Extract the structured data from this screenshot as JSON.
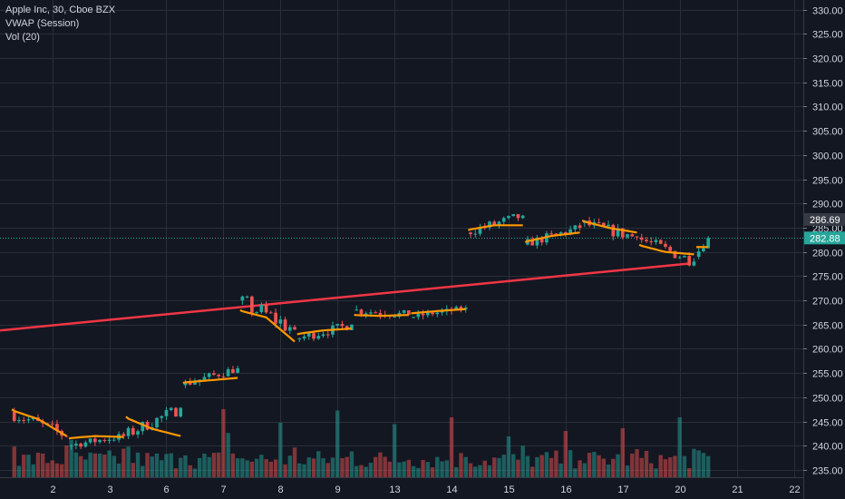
{
  "chart_data": {
    "type": "candlestick",
    "legend": [
      "Apple Inc, 30, Cboe BZX",
      "VWAP (Session)",
      "Vol (20)"
    ],
    "y_ticks": [
      235,
      240,
      245,
      250,
      255,
      260,
      265,
      270,
      275,
      280,
      285,
      290,
      295,
      300,
      305,
      310,
      315,
      320,
      325,
      330
    ],
    "y_tick_labels": [
      "235.00",
      "240.00",
      "245.00",
      "250.00",
      "255.00",
      "260.00",
      "265.00",
      "270.00",
      "275.00",
      "280.00",
      "285.00",
      "290.00",
      "295.00",
      "300.00",
      "305.00",
      "310.00",
      "315.00",
      "320.00",
      "325.00",
      "330.00"
    ],
    "ylim": [
      233.5,
      332
    ],
    "x_ticks": [
      {
        "label": "2",
        "bar": 8
      },
      {
        "label": "3",
        "bar": 20
      },
      {
        "label": "6",
        "bar": 32
      },
      {
        "label": "7",
        "bar": 44
      },
      {
        "label": "8",
        "bar": 56
      },
      {
        "label": "9",
        "bar": 68
      },
      {
        "label": "13",
        "bar": 80
      },
      {
        "label": "14",
        "bar": 92
      },
      {
        "label": "15",
        "bar": 104
      },
      {
        "label": "16",
        "bar": 116
      },
      {
        "label": "17",
        "bar": 128
      },
      {
        "label": "20",
        "bar": 140
      },
      {
        "label": "21",
        "bar": 152
      },
      {
        "label": "22",
        "bar": 164
      }
    ],
    "x_range_bars": [
      -3,
      166
    ],
    "price_labels": [
      {
        "value": 286.69,
        "label": "286.69",
        "color": "#363a45"
      },
      {
        "value": 282.88,
        "label": "282.88",
        "color": "#26a69a"
      }
    ],
    "current_price": 282.88,
    "trendline": {
      "x1_bar": -3,
      "y1": 263.8,
      "x2_bar": 142,
      "y2": 277.6,
      "color": "#f23645"
    },
    "colors": {
      "up": "#26a69a",
      "down": "#ef5350",
      "vwap": "#ff9800",
      "grid": "#2a2e39",
      "text": "#d1d4dc",
      "background": "#131722"
    },
    "days": [
      {
        "o": 247.0,
        "c": 242.0,
        "h": 248.0,
        "l": 239.5
      },
      {
        "o": 240.0,
        "c": 242.0,
        "h": 243.5,
        "l": 239.0
      },
      {
        "o": 242.0,
        "c": 247.8,
        "h": 248.0,
        "l": 240.5
      },
      {
        "o": 252.5,
        "c": 256.0,
        "h": 256.5,
        "l": 251.5
      },
      {
        "o": 270.0,
        "c": 264.0,
        "h": 271.0,
        "l": 259.0
      },
      {
        "o": 262.0,
        "c": 265.0,
        "h": 266.5,
        "l": 261.0
      },
      {
        "o": 268.0,
        "c": 267.0,
        "h": 270.0,
        "l": 265.0
      },
      {
        "o": 266.5,
        "c": 268.5,
        "h": 269.0,
        "l": 266.0
      },
      {
        "o": 284.0,
        "c": 287.5,
        "h": 288.5,
        "l": 282.5
      },
      {
        "o": 281.5,
        "c": 285.0,
        "h": 286.0,
        "l": 280.5
      },
      {
        "o": 286.0,
        "c": 283.0,
        "h": 288.5,
        "l": 281.5
      },
      {
        "o": 283.0,
        "c": 278.0,
        "h": 284.0,
        "l": 277.0
      },
      {
        "o": 279.0,
        "c": 282.9,
        "h": 283.5,
        "l": 278.5
      }
    ],
    "vwap_days": [
      [
        247.5,
        245.5,
        242.0
      ],
      [
        241.5,
        242.0,
        241.8
      ],
      [
        246.0,
        243.5,
        242.0
      ],
      [
        253.0,
        253.5,
        254.0
      ],
      [
        268.0,
        266.5,
        261.5
      ],
      [
        263.0,
        263.8,
        264.2
      ],
      [
        267.0,
        266.8,
        267.0
      ],
      [
        267.3,
        267.8,
        268.2
      ],
      [
        284.5,
        285.5,
        285.5
      ],
      [
        282.0,
        283.3,
        284.0
      ],
      [
        286.5,
        285.0,
        284.0
      ],
      [
        281.5,
        280.0,
        279.5
      ],
      [
        281.0,
        281.0,
        281.0
      ]
    ],
    "volume_spikes": [
      {
        "bar": 0,
        "v": 0.45
      },
      {
        "bar": 12,
        "v": 0.55
      },
      {
        "bar": 24,
        "v": 0.45
      },
      {
        "bar": 36,
        "v": 0.32
      },
      {
        "bar": 44,
        "v": 1.0
      },
      {
        "bar": 45,
        "v": 0.65
      },
      {
        "bar": 56,
        "v": 0.8
      },
      {
        "bar": 68,
        "v": 0.98
      },
      {
        "bar": 80,
        "v": 0.78
      },
      {
        "bar": 92,
        "v": 0.88
      },
      {
        "bar": 104,
        "v": 0.6
      },
      {
        "bar": 116,
        "v": 0.68
      },
      {
        "bar": 128,
        "v": 0.72
      },
      {
        "bar": 140,
        "v": 0.88
      }
    ]
  }
}
